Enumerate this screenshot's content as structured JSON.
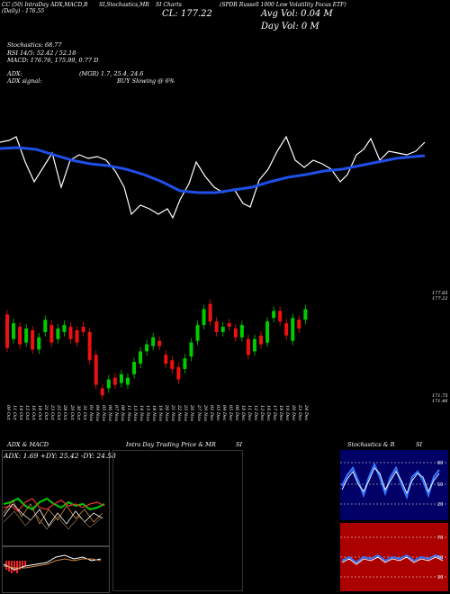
{
  "header": {
    "line1": [
      "CC (50) IntraDay ADX,MACD,B",
      "SI,Stochastics,MR",
      "SI Charts",
      "(SPDR Russell 1000 Low Volatility Focus ETF)"
    ],
    "line2_left": "(Daily) - 176.55",
    "close_label": "CL: 177.22",
    "avg_vol_label": "Avg Vol: 0.04  M",
    "day_vol_label": "Day Vol: 0  M"
  },
  "indicators": {
    "stochastics": "Stochastics: 68.77",
    "rsi": "RSI 14/5: 52.42 / 52.18",
    "macd": "MACD: 176.76, 175.99,  0.77 D",
    "adx": "ADX:",
    "adx_values": "(MGR) 1.7, 25.4, 24.6",
    "adx_signal": "ADX  signal:",
    "signal": "BUY Slowing @ 6%"
  },
  "price_axis": {
    "top": "177.85",
    "top2": "177.22",
    "bot": "171.75",
    "bot2": "171.46"
  },
  "dates": [
    "09 Oct",
    "11 Oct",
    "14 Oct",
    "15 Oct",
    "16 Oct",
    "18 Oct",
    "21 Oct",
    "23 Oct",
    "25 Oct",
    "28 Oct",
    "29 Oct",
    "30 Oct",
    "31 Oct",
    "01 Nov",
    "04 Nov",
    "05 Nov",
    "06 Nov",
    "07 Nov",
    "08 Nov",
    "11 Nov",
    "13 Nov",
    "14 Nov",
    "15 Nov",
    "18 Nov",
    "19 Nov",
    "20 Nov",
    "21 Nov",
    "22 Nov",
    "25 Nov",
    "26 Nov",
    "27 Nov",
    "29 Nov",
    "02 Dec",
    "03 Dec",
    "04 Dec",
    "05 Dec",
    "06 Dec",
    "10 Dec",
    "11 Dec",
    "12 Dec",
    "13 Dec",
    "16 Dec",
    "17 Dec",
    "18 Dec",
    "19 Dec",
    "20 Dec",
    "23 Dec",
    "24 Dec"
  ],
  "panels": {
    "adx_macd_title": "ADX  & MACD",
    "adx_readout": "ADX: 1.69  +DY: 25.42  -DY: 24.58",
    "mrsi_title": "Intra  Day Trading Price  & MR",
    "mrsi_title2": "SI",
    "stoch_title": "Stochastics & R",
    "stoch_title2": "SI"
  },
  "stoch_axis": [
    "80",
    "50",
    "20"
  ],
  "rsi_axis": [
    "70",
    "50",
    "30"
  ],
  "colors": {
    "green": "#00cc00",
    "red": "#ee1111",
    "blue": "#1f4fe8",
    "navy": "#000066",
    "darkred": "#aa0000"
  },
  "candles": [
    {
      "o": 176.6,
      "c": 174.7
    },
    {
      "o": 175.2,
      "c": 176.1
    },
    {
      "o": 175.9,
      "c": 174.9
    },
    {
      "o": 175.0,
      "c": 175.8
    },
    {
      "o": 175.7,
      "c": 174.6
    },
    {
      "o": 174.6,
      "c": 175.3
    },
    {
      "o": 175.6,
      "c": 176.3
    },
    {
      "o": 176.0,
      "c": 175.0
    },
    {
      "o": 175.2,
      "c": 175.8
    },
    {
      "o": 175.6,
      "c": 176.0
    },
    {
      "o": 175.9,
      "c": 175.2
    },
    {
      "o": 175.7,
      "c": 175.0
    },
    {
      "o": 175.9,
      "c": 175.6
    },
    {
      "o": 175.6,
      "c": 174.0
    },
    {
      "o": 174.3,
      "c": 172.6
    },
    {
      "o": 172.4,
      "c": 172.0
    },
    {
      "o": 172.4,
      "c": 172.9
    },
    {
      "o": 173.0,
      "c": 172.6
    },
    {
      "o": 172.7,
      "c": 173.2
    },
    {
      "o": 172.6,
      "c": 173.0
    },
    {
      "o": 173.2,
      "c": 173.9
    },
    {
      "o": 173.8,
      "c": 174.5
    },
    {
      "o": 174.5,
      "c": 174.9
    },
    {
      "o": 174.8,
      "c": 175.3
    },
    {
      "o": 175.1,
      "c": 174.8
    },
    {
      "o": 174.3,
      "c": 173.8
    },
    {
      "o": 174.0,
      "c": 173.5
    },
    {
      "o": 173.6,
      "c": 172.9
    },
    {
      "o": 173.5,
      "c": 174.1
    },
    {
      "o": 174.2,
      "c": 175.0
    },
    {
      "o": 175.1,
      "c": 176.0
    },
    {
      "o": 176.0,
      "c": 176.9
    },
    {
      "o": 177.2,
      "c": 176.2
    },
    {
      "o": 176.2,
      "c": 175.6
    },
    {
      "o": 175.6,
      "c": 175.9
    },
    {
      "o": 176.1,
      "c": 175.9
    },
    {
      "o": 175.8,
      "c": 175.3
    },
    {
      "o": 175.3,
      "c": 176.0
    },
    {
      "o": 175.2,
      "c": 174.3
    },
    {
      "o": 174.5,
      "c": 175.2
    },
    {
      "o": 175.4,
      "c": 174.9
    },
    {
      "o": 175.0,
      "c": 176.2
    },
    {
      "o": 176.4,
      "c": 176.8
    },
    {
      "o": 176.8,
      "c": 176.2
    },
    {
      "o": 176.1,
      "c": 175.4
    },
    {
      "o": 175.1,
      "c": 176.4
    },
    {
      "o": 176.3,
      "c": 175.8
    },
    {
      "o": 176.3,
      "c": 176.9
    }
  ]
}
